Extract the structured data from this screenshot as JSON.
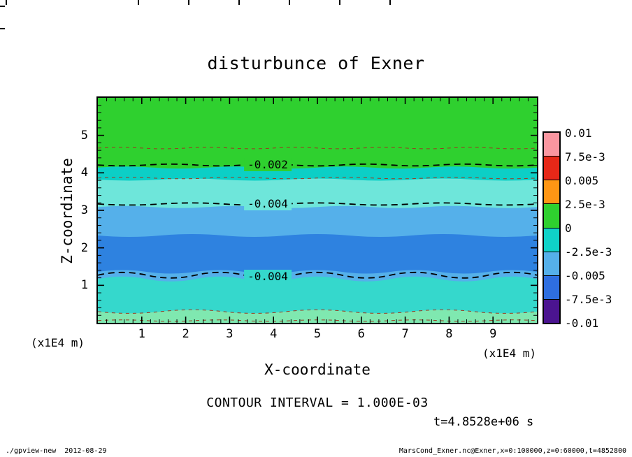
{
  "footer": {
    "command": "./gpview-new  2012-08-29",
    "source": "MarsCond_Exner.nc@Exner,x=0:100000,z=0:60000,t=4852800"
  },
  "chart_data": {
    "type": "heatmap",
    "title": "disturbunce of Exner",
    "xlabel": "X-coordinate",
    "ylabel": "Z-coordinate",
    "axis_unit": "(x1E4 m)",
    "x_range": [
      0,
      10
    ],
    "y_range": [
      0,
      6
    ],
    "x_ticks": [
      1,
      2,
      3,
      4,
      5,
      6,
      7,
      8,
      9
    ],
    "y_ticks": [
      1,
      2,
      3,
      4,
      5
    ],
    "contour_interval_text": "CONTOUR INTERVAL = 1.000E-03",
    "time_label": "t=4.8528e+06 s",
    "line_color_labeled": "#000000",
    "line_color_minor": "#9b3a20",
    "colorbar": {
      "levels": [
        "0.01",
        "7.5e-3",
        "0.005",
        "2.5e-3",
        "0",
        "-2.5e-3",
        "-0.005",
        "-7.5e-3",
        "-0.01"
      ],
      "colors": [
        "#fa96a0",
        "#e62818",
        "#ff9614",
        "#2fd02f",
        "#0fd2c8",
        "#55b0ea",
        "#2e6ee0",
        "#4b1490"
      ]
    },
    "fill_bands": [
      {
        "top_z": 6.0,
        "color": "#2fd02f",
        "amp": 0,
        "waves": 1,
        "flip": false
      },
      {
        "top_z": 4.14,
        "color": "#0ccfc6",
        "amp": 3,
        "waves": 8,
        "flip": false
      },
      {
        "top_z": 3.82,
        "color": "#6ee6da",
        "amp": 3,
        "waves": 7,
        "flip": true
      },
      {
        "top_z": 3.09,
        "color": "#55b0ea",
        "amp": 3,
        "waves": 8,
        "flip": false
      },
      {
        "top_z": 2.33,
        "color": "#2e82e0",
        "amp": 4,
        "waves": 7,
        "flip": true
      },
      {
        "top_z": 1.36,
        "color": "#55b0ea",
        "amp": 5,
        "waves": 9,
        "flip": false
      },
      {
        "top_z": 1.17,
        "color": "#35d8cc",
        "amp": 7,
        "waves": 9,
        "flip": false
      },
      {
        "top_z": 0.3,
        "color": "#7fe8b0",
        "amp": 5,
        "waves": 7,
        "flip": true
      }
    ],
    "contour_lines": [
      {
        "z": 4.66,
        "labeled": false,
        "amp": 2,
        "waves": 10,
        "flip": false
      },
      {
        "z": 4.21,
        "labeled": true,
        "label": "-0.002",
        "amp": 2.5,
        "waves": 9,
        "flip": true
      },
      {
        "z": 3.86,
        "labeled": false,
        "amp": 2,
        "waves": 8,
        "flip": false
      },
      {
        "z": 3.17,
        "labeled": true,
        "label": "-0.004",
        "amp": 3,
        "waves": 7,
        "flip": true
      },
      {
        "z": 1.27,
        "labeled": true,
        "label": "-0.004",
        "amp": 8,
        "waves": 9,
        "flip": false
      },
      {
        "z": 0.3,
        "labeled": false,
        "amp": 5,
        "waves": 7,
        "flip": true
      },
      {
        "z": 0.06,
        "labeled": false,
        "amp": 2,
        "waves": 9,
        "flip": false
      }
    ],
    "contour_labels": [
      {
        "text": "-0.002",
        "bg": "#2fd02f"
      },
      {
        "text": "-0.004",
        "bg": "#6ee6da"
      },
      {
        "text": "-0.004",
        "bg": "#35d8cc"
      }
    ]
  },
  "decor": {
    "top_ticks": [
      8,
      197,
      269,
      341,
      413,
      485,
      557
    ],
    "left_ticks": [
      8,
      40
    ]
  }
}
